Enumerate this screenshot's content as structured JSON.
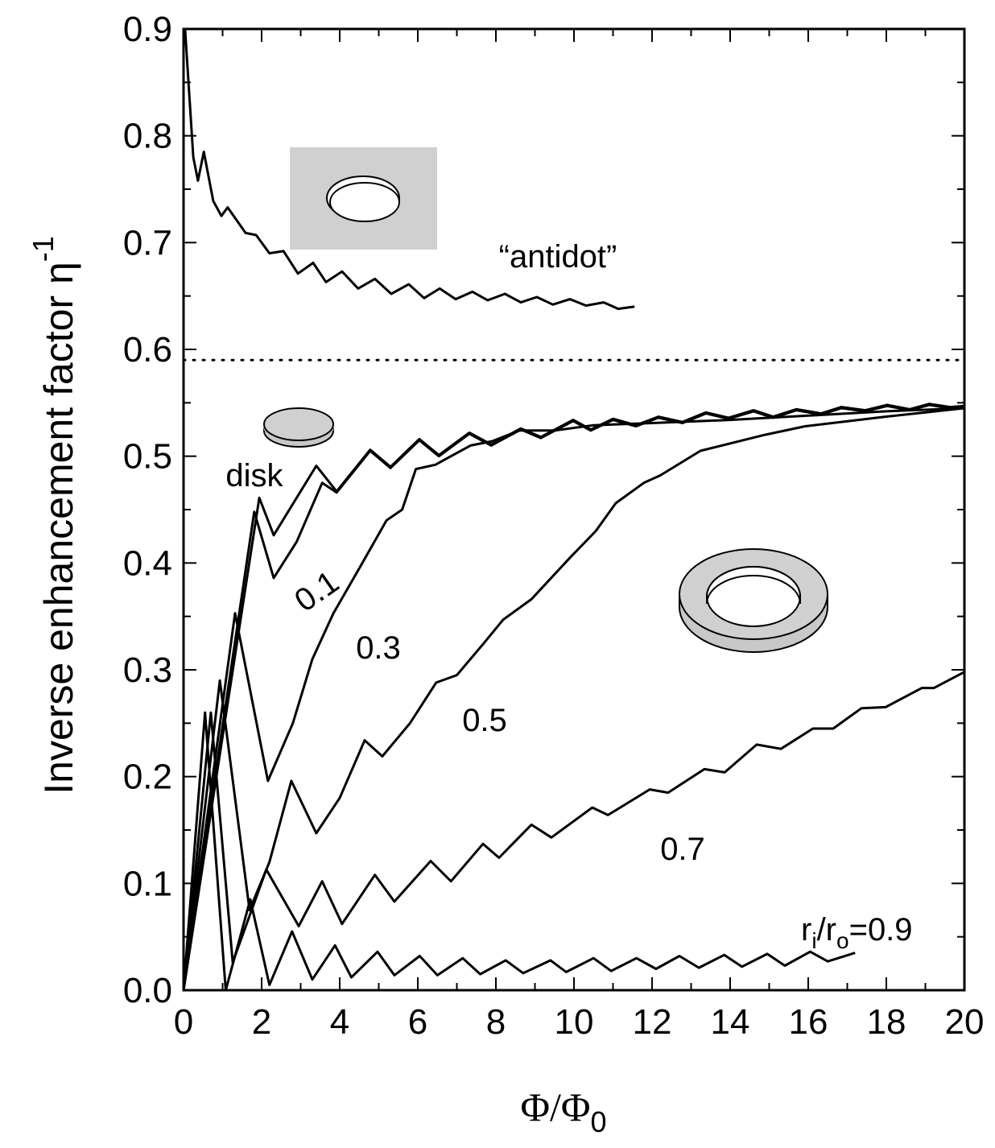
{
  "chart_data": {
    "type": "line",
    "xlabel": {
      "text": "Φ/Φ",
      "sub": "0"
    },
    "ylabel": {
      "text": "Inverse enhancement factor η",
      "sup": "-1"
    },
    "xlim": [
      0,
      20
    ],
    "ylim": [
      0,
      0.9
    ],
    "xticks": [
      0,
      2,
      4,
      6,
      8,
      10,
      12,
      14,
      16,
      18,
      20
    ],
    "xminorticks": [
      1,
      3,
      5,
      7,
      9,
      11,
      13,
      15,
      17,
      19
    ],
    "yticks": [
      {
        "value": 0,
        "label": "0.0"
      },
      0.1,
      0.2,
      0.3,
      0.4,
      0.5,
      0.6,
      0.7,
      0.8,
      0.9
    ],
    "yminorticks": [
      0.05,
      0.15,
      0.25,
      0.35,
      0.45,
      0.55,
      0.65,
      0.75,
      0.85
    ],
    "reference_line": 0.59,
    "series": [
      {
        "name": "“antidot”",
        "color": "#000000",
        "x": [
          0.04,
          0.25,
          0.37,
          0.52,
          0.76,
          0.97,
          1.13,
          1.59,
          1.86,
          2.2,
          2.56,
          2.93,
          3.32,
          3.65,
          4.06,
          4.47,
          4.9,
          5.32,
          5.77,
          6.16,
          6.56,
          6.97,
          7.4,
          7.79,
          8.23,
          8.64,
          9.05,
          9.46,
          9.9,
          10.31,
          10.76,
          11.13,
          11.55
        ],
        "values": [
          0.9,
          0.78,
          0.758,
          0.785,
          0.739,
          0.725,
          0.733,
          0.709,
          0.707,
          0.69,
          0.692,
          0.671,
          0.681,
          0.663,
          0.673,
          0.657,
          0.666,
          0.652,
          0.661,
          0.648,
          0.657,
          0.647,
          0.654,
          0.646,
          0.652,
          0.644,
          0.649,
          0.642,
          0.647,
          0.641,
          0.644,
          0.638,
          0.64
        ]
      },
      {
        "name": "disk",
        "color": "#000000",
        "x": [
          0,
          1.94,
          2.31,
          3.4,
          3.92,
          4.78,
          5.3,
          6.04,
          6.54,
          7.32,
          7.88,
          8.64,
          9.15,
          9.98,
          10.43,
          11.0,
          11.59,
          12.16,
          12.78,
          13.38,
          13.96,
          14.6,
          15.1,
          15.7,
          16.33,
          16.85,
          17.46,
          18.02,
          18.6,
          19.1,
          19.63,
          20
        ],
        "values": [
          0,
          0.461,
          0.426,
          0.491,
          0.467,
          0.506,
          0.49,
          0.516,
          0.501,
          0.522,
          0.511,
          0.526,
          0.518,
          0.534,
          0.525,
          0.535,
          0.529,
          0.537,
          0.532,
          0.541,
          0.536,
          0.543,
          0.537,
          0.544,
          0.54,
          0.546,
          0.543,
          0.548,
          0.544,
          0.549,
          0.546,
          0.547
        ]
      },
      {
        "name": "0.1",
        "color": "#000000",
        "x": [
          0,
          1.81,
          2.31,
          2.9,
          3.55,
          3.92,
          4.78,
          5.3,
          6.04,
          6.54,
          7.32,
          7.88,
          8.64,
          9.15,
          9.98,
          10.43,
          11.0,
          11.59,
          12.16,
          12.78,
          13.38,
          13.96,
          14.6,
          15.1,
          15.7,
          16.33,
          16.85,
          17.46,
          18.02,
          18.6,
          19.1,
          19.63,
          20
        ],
        "values": [
          0,
          0.448,
          0.386,
          0.42,
          0.475,
          0.466,
          0.505,
          0.489,
          0.515,
          0.5,
          0.521,
          0.51,
          0.525,
          0.517,
          0.533,
          0.524,
          0.534,
          0.528,
          0.536,
          0.531,
          0.54,
          0.535,
          0.542,
          0.536,
          0.543,
          0.539,
          0.545,
          0.542,
          0.547,
          0.543,
          0.548,
          0.545,
          0.546
        ]
      },
      {
        "name": "0.3",
        "color": "#000000",
        "x": [
          0,
          1.32,
          2.16,
          2.8,
          3.3,
          3.84,
          4.5,
          5.2,
          5.6,
          5.95,
          6.45,
          7.0,
          7.35,
          7.9,
          8.6,
          9.5,
          10.5,
          12,
          14,
          16,
          18,
          20
        ],
        "values": [
          0,
          0.353,
          0.196,
          0.25,
          0.31,
          0.353,
          0.395,
          0.44,
          0.45,
          0.488,
          0.492,
          0.503,
          0.51,
          0.514,
          0.524,
          0.524,
          0.529,
          0.531,
          0.534,
          0.538,
          0.542,
          0.545
        ]
      },
      {
        "name": "0.5",
        "color": "#000000",
        "x": [
          0,
          0.93,
          1.69,
          2.2,
          2.76,
          3.4,
          4.0,
          4.64,
          5.09,
          5.8,
          6.47,
          7.0,
          7.67,
          8.19,
          8.91,
          9.9,
          10.56,
          11.07,
          11.79,
          12.21,
          13.24,
          14.89,
          15.92,
          17.98,
          20
        ],
        "values": [
          0,
          0.29,
          0.075,
          0.12,
          0.196,
          0.147,
          0.18,
          0.234,
          0.219,
          0.25,
          0.288,
          0.295,
          0.324,
          0.347,
          0.366,
          0.405,
          0.43,
          0.456,
          0.475,
          0.482,
          0.505,
          0.52,
          0.528,
          0.537,
          0.545
        ]
      },
      {
        "name": "0.7",
        "color": "#000000",
        "x": [
          0,
          0.7,
          1.26,
          2.12,
          2.95,
          3.55,
          4.06,
          4.9,
          5.4,
          6.33,
          6.85,
          7.67,
          8.08,
          8.91,
          9.42,
          10.47,
          10.87,
          11.94,
          12.41,
          13.34,
          13.86,
          14.68,
          15.3,
          16.12,
          16.64,
          17.36,
          17.98,
          18.91,
          19.22,
          20
        ],
        "values": [
          0,
          0.26,
          0.026,
          0.113,
          0.06,
          0.102,
          0.062,
          0.108,
          0.083,
          0.121,
          0.102,
          0.137,
          0.124,
          0.155,
          0.143,
          0.171,
          0.164,
          0.188,
          0.185,
          0.207,
          0.204,
          0.23,
          0.226,
          0.245,
          0.245,
          0.264,
          0.265,
          0.283,
          0.283,
          0.298
        ]
      },
      {
        "name_parts": [
          "r",
          "i",
          "/r",
          "o",
          "=0.9"
        ],
        "color": "#000000",
        "x": [
          0,
          0.55,
          1.08,
          1.71,
          2.2,
          2.78,
          3.3,
          3.88,
          4.3,
          4.97,
          5.4,
          6.05,
          6.5,
          7.15,
          7.6,
          8.25,
          8.7,
          9.4,
          9.8,
          10.5,
          10.95,
          11.6,
          12.1,
          12.7,
          13.2,
          13.85,
          14.3,
          14.95,
          15.4,
          16.05,
          16.5,
          17.2
        ],
        "values": [
          0,
          0.26,
          0,
          0.085,
          0.005,
          0.055,
          0.01,
          0.042,
          0.012,
          0.036,
          0.014,
          0.032,
          0.014,
          0.03,
          0.015,
          0.028,
          0.016,
          0.028,
          0.017,
          0.03,
          0.018,
          0.03,
          0.02,
          0.032,
          0.021,
          0.033,
          0.022,
          0.034,
          0.023,
          0.036,
          0.027,
          0.035
        ]
      }
    ]
  }
}
